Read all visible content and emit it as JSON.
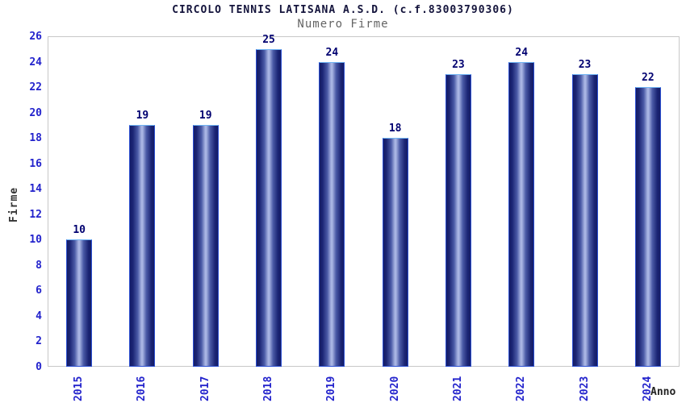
{
  "header": {
    "title": "CIRCOLO TENNIS LATISANA A.S.D. (c.f.83003790306)",
    "subtitle": "Numero Firme"
  },
  "chart_data": {
    "type": "bar",
    "title": "CIRCOLO TENNIS LATISANA A.S.D. (c.f.83003790306)",
    "subtitle": "Numero Firme",
    "categories": [
      "2015",
      "2016",
      "2017",
      "2018",
      "2019",
      "2020",
      "2021",
      "2022",
      "2023",
      "2024"
    ],
    "values": [
      10,
      19,
      19,
      25,
      24,
      18,
      23,
      24,
      23,
      22
    ],
    "xlabel": "Anno",
    "ylabel": "Firme",
    "ylim": [
      0,
      26
    ],
    "ytick_step": 2,
    "yticks": [
      0,
      2,
      4,
      6,
      8,
      10,
      12,
      14,
      16,
      18,
      20,
      22,
      24,
      26
    ],
    "grid": "horizontal",
    "band_fill": "alternating",
    "legend_position": "none"
  },
  "colors": {
    "title": "#14143c",
    "subtitle": "#646464",
    "tick_labels": "#2323cc",
    "value_labels": "#000070",
    "bar_dark": "#141c66",
    "bar_light": "#aab6e4",
    "bar_border": "#2c50d2",
    "band": "#f2f2f2",
    "gridline": "#d8d8d8",
    "plot_border": "#c8c8c8",
    "background": "#ffffff"
  }
}
